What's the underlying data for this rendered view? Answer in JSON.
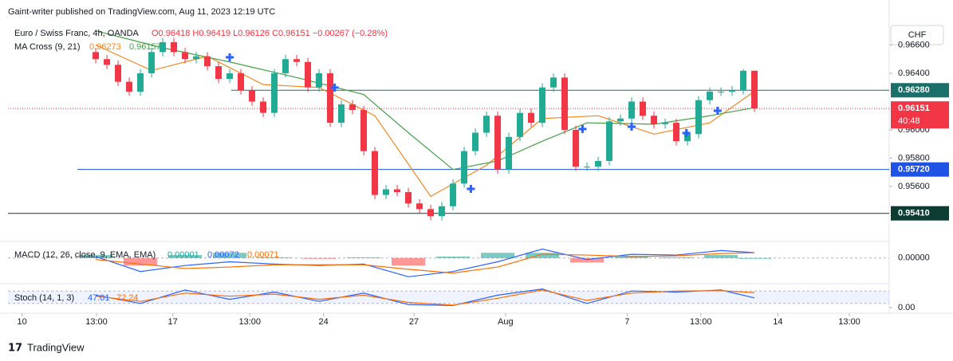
{
  "header": {
    "published": "Gaint-writer published on TradingView.com, Aug 11, 2023 12:19 UTC",
    "currency": "CHF",
    "brand": "TradingView"
  },
  "chart_data": [
    {
      "type": "candlestick",
      "title": "Euro / Swiss Franc, 4h, OANDA",
      "ohlc_text": "O0.96418 H0.96419 L0.96126 C0.96151 −0.00267 (−0.28%)",
      "up_color": "#22ab94",
      "down_color": "#f23645",
      "x": [
        0,
        1,
        2,
        3,
        4,
        5,
        6,
        7,
        8,
        9,
        10,
        11,
        12,
        13,
        14,
        15,
        16,
        17,
        18,
        19,
        20,
        21,
        22,
        23,
        24,
        25,
        26,
        27,
        28,
        29,
        30,
        31,
        32,
        33,
        34,
        35,
        36,
        37,
        38,
        39,
        40,
        41,
        42,
        43,
        44,
        45,
        46,
        47,
        48,
        49,
        50,
        51,
        52,
        53,
        54,
        55,
        56,
        57,
        58,
        59
      ],
      "open": [
        0.9655,
        0.965,
        0.9646,
        0.9634,
        0.9627,
        0.964,
        0.9655,
        0.9662,
        0.9655,
        0.965,
        0.9652,
        0.9645,
        0.9636,
        0.964,
        0.9628,
        0.962,
        0.9612,
        0.964,
        0.965,
        0.9648,
        0.963,
        0.964,
        0.9605,
        0.9618,
        0.9614,
        0.9585,
        0.9554,
        0.9558,
        0.9556,
        0.9548,
        0.9544,
        0.9539,
        0.9546,
        0.9562,
        0.9585,
        0.9598,
        0.961,
        0.9572,
        0.9595,
        0.9612,
        0.9605,
        0.963,
        0.9637,
        0.96,
        0.9574,
        0.9574,
        0.9578,
        0.9606,
        0.9608,
        0.962,
        0.961,
        0.9604,
        0.9605,
        0.9592,
        0.9597,
        0.9621,
        0.9627,
        0.9627,
        0.9628,
        0.96418
      ],
      "high": [
        0.9658,
        0.9653,
        0.9649,
        0.9637,
        0.9643,
        0.9658,
        0.9665,
        0.9665,
        0.9658,
        0.9655,
        0.9655,
        0.9648,
        0.9643,
        0.9643,
        0.9631,
        0.9623,
        0.9643,
        0.9653,
        0.9653,
        0.9651,
        0.9643,
        0.9643,
        0.9621,
        0.9621,
        0.9617,
        0.9588,
        0.9561,
        0.9561,
        0.9559,
        0.9551,
        0.9547,
        0.9549,
        0.9565,
        0.9588,
        0.9601,
        0.9613,
        0.9613,
        0.9598,
        0.9615,
        0.9615,
        0.9633,
        0.964,
        0.964,
        0.9603,
        0.9577,
        0.9581,
        0.9609,
        0.9611,
        0.9623,
        0.9623,
        0.9613,
        0.9608,
        0.9608,
        0.96,
        0.9624,
        0.963,
        0.963,
        0.9631,
        0.9643,
        0.96419
      ],
      "low": [
        0.9647,
        0.9643,
        0.9631,
        0.9624,
        0.9624,
        0.9637,
        0.9652,
        0.9652,
        0.9647,
        0.9647,
        0.9642,
        0.9633,
        0.9633,
        0.9625,
        0.9617,
        0.9609,
        0.9609,
        0.9637,
        0.9645,
        0.9627,
        0.9627,
        0.9602,
        0.9602,
        0.9611,
        0.9582,
        0.9551,
        0.9551,
        0.9553,
        0.9545,
        0.9541,
        0.9536,
        0.9536,
        0.9543,
        0.9559,
        0.9582,
        0.9595,
        0.9569,
        0.9569,
        0.9592,
        0.9602,
        0.9602,
        0.9627,
        0.9597,
        0.9571,
        0.9571,
        0.9571,
        0.9575,
        0.9603,
        0.9605,
        0.9607,
        0.9601,
        0.9601,
        0.9589,
        0.9589,
        0.9594,
        0.9618,
        0.9624,
        0.9624,
        0.9625,
        0.96126
      ],
      "close": [
        0.965,
        0.9646,
        0.9634,
        0.9627,
        0.964,
        0.9655,
        0.9662,
        0.9655,
        0.965,
        0.9652,
        0.9645,
        0.9636,
        0.964,
        0.9628,
        0.962,
        0.9612,
        0.964,
        0.965,
        0.9648,
        0.963,
        0.964,
        0.9605,
        0.9618,
        0.9614,
        0.9585,
        0.9554,
        0.9558,
        0.9556,
        0.9548,
        0.9544,
        0.9539,
        0.9546,
        0.9562,
        0.9585,
        0.9598,
        0.961,
        0.9572,
        0.9595,
        0.9612,
        0.9605,
        0.963,
        0.9637,
        0.96,
        0.9574,
        0.9574,
        0.9578,
        0.9606,
        0.9608,
        0.962,
        0.961,
        0.9604,
        0.9605,
        0.9592,
        0.9597,
        0.9621,
        0.9627,
        0.9627,
        0.9628,
        0.96418,
        0.96151
      ],
      "ma_title": "MA Cross (9, 21)",
      "series": [
        {
          "name": "0.96273",
          "color": "#f7861f",
          "x": [
            0,
            5,
            10,
            15,
            20,
            25,
            30,
            35,
            40,
            45,
            50,
            55,
            59
          ],
          "values": [
            0.966,
            0.9642,
            0.9652,
            0.9632,
            0.963,
            0.961,
            0.9553,
            0.9575,
            0.9608,
            0.961,
            0.9597,
            0.9605,
            0.96273
          ]
        },
        {
          "name": "0.96157",
          "color": "#43a047",
          "x": [
            0,
            6,
            12,
            18,
            24,
            28,
            32,
            36,
            40,
            44,
            50,
            55,
            59
          ],
          "values": [
            0.967,
            0.9658,
            0.9648,
            0.9637,
            0.9625,
            0.9598,
            0.9572,
            0.9578,
            0.9592,
            0.9605,
            0.9604,
            0.961,
            0.96157
          ]
        }
      ],
      "crosses": {
        "color": "#2962ff",
        "x": [
          12,
          21.4,
          33.6,
          43.6,
          48,
          52.9,
          55.7
        ],
        "values": [
          0.96513,
          0.96299,
          0.95583,
          0.96006,
          0.96022,
          0.95977,
          0.96135
        ]
      },
      "levels": [
        {
          "value": 0.9628,
          "label": "0.96280",
          "color": "#1b6f6a"
        },
        {
          "value": 0.9572,
          "label": "0.95720",
          "color": "#1e53e5"
        },
        {
          "value": 0.9541,
          "label": "0.95410",
          "color": "#0b3d33"
        }
      ],
      "last_price": {
        "value": 0.96151,
        "label": "0.96151",
        "countdown": "40:48",
        "color": "#f23645"
      },
      "ylim": [
        0.95228,
        0.96749
      ],
      "yticks": [
        {
          "value": 0.956,
          "label": "0.95600"
        },
        {
          "value": 0.958,
          "label": "0.95800"
        },
        {
          "value": 0.96,
          "label": "0.96000"
        },
        {
          "value": 0.964,
          "label": "0.96400"
        },
        {
          "value": 0.966,
          "label": "0.96600"
        }
      ],
      "xlim": [
        -7.86,
        71.07
      ],
      "xticks": [
        {
          "value": -6.6,
          "label": "10"
        },
        {
          "value": 0.07,
          "label": "13:00"
        },
        {
          "value": 6.9,
          "label": "17"
        },
        {
          "value": 13.8,
          "label": "13:00"
        },
        {
          "value": 20.4,
          "label": "24"
        },
        {
          "value": 28.5,
          "label": "27"
        },
        {
          "value": 36.7,
          "label": "Aug"
        },
        {
          "value": 47.6,
          "label": "7"
        },
        {
          "value": 54.2,
          "label": "13:00"
        },
        {
          "value": 61.1,
          "label": "14"
        },
        {
          "value": 67.5,
          "label": "13:00"
        }
      ]
    },
    {
      "type": "macd",
      "title": "MACD (12, 26, close, 9, EMA, EMA)",
      "x": [
        0,
        4,
        8,
        12,
        16,
        20,
        24,
        28,
        32,
        36,
        40,
        44,
        48,
        52,
        56,
        59
      ],
      "histogram": {
        "name": "0.00001",
        "values": [
          0.0004,
          -0.001,
          0.0004,
          0.0007,
          0.0001,
          -0.0001,
          0.0001,
          -0.001,
          0.0002,
          0.0007,
          0.0007,
          -0.0006,
          0.0003,
          0.0001,
          0.0004,
          1e-05
        ]
      },
      "series": [
        {
          "name": "0.00072",
          "color": "#2962ff",
          "values": [
            0.0002,
            -0.0018,
            -0.001,
            -0.0005,
            -0.0008,
            -0.001,
            -0.0008,
            -0.0025,
            -0.0018,
            -0.0005,
            0.0012,
            -0.0002,
            0.0005,
            0.0004,
            0.001,
            0.00072
          ]
        },
        {
          "name": "0.00071",
          "color": "#ff6d00",
          "values": [
            -0.0002,
            -0.0008,
            -0.0014,
            -0.0012,
            -0.0009,
            -0.0009,
            -0.0009,
            -0.0015,
            -0.002,
            -0.0012,
            0.0005,
            0.0004,
            0.0002,
            0.0003,
            0.0006,
            0.00071
          ]
        }
      ],
      "ylim": [
        -0.003,
        0.002
      ],
      "yticks": [
        {
          "value": 0,
          "label": "0.00000"
        }
      ]
    },
    {
      "type": "stoch",
      "title": "Stoch (14, 1, 3)",
      "x": [
        0,
        4,
        8,
        12,
        16,
        20,
        24,
        28,
        32,
        36,
        40,
        44,
        48,
        52,
        56,
        59
      ],
      "series": [
        {
          "name": "47.01",
          "color": "#2962ff",
          "values": [
            60,
            20,
            85,
            40,
            75,
            30,
            70,
            15,
            10,
            60,
            90,
            20,
            80,
            75,
            85,
            47.01
          ]
        },
        {
          "name": "72.24",
          "color": "#ff6d00",
          "values": [
            55,
            30,
            70,
            55,
            65,
            40,
            60,
            25,
            12,
            45,
            85,
            35,
            70,
            80,
            82,
            72.24
          ]
        }
      ],
      "band": [
        20,
        80
      ],
      "ylim": [
        0,
        100
      ],
      "yticks": [
        {
          "value": 0,
          "label": "0.00"
        }
      ]
    }
  ]
}
